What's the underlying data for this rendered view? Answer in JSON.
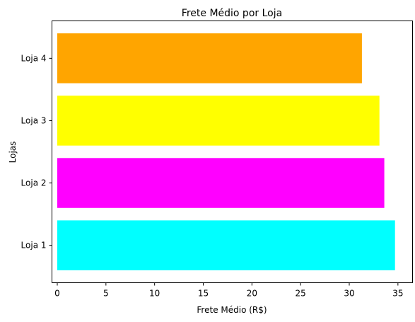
{
  "chart_data": {
    "type": "bar",
    "orientation": "horizontal",
    "title": "Frete Médio por Loja",
    "xlabel": "Frete Médio (R$)",
    "ylabel": "Lojas",
    "categories": [
      "Loja 1",
      "Loja 2",
      "Loja 3",
      "Loja 4"
    ],
    "values": [
      34.7,
      33.6,
      33.1,
      31.3
    ],
    "colors": [
      "#00ffff",
      "#ff00ff",
      "#ffff00",
      "#ffa500"
    ],
    "xlim": [
      0,
      36.5
    ],
    "xticks": [
      0,
      5,
      10,
      15,
      20,
      25,
      30,
      35
    ],
    "grid": false
  }
}
